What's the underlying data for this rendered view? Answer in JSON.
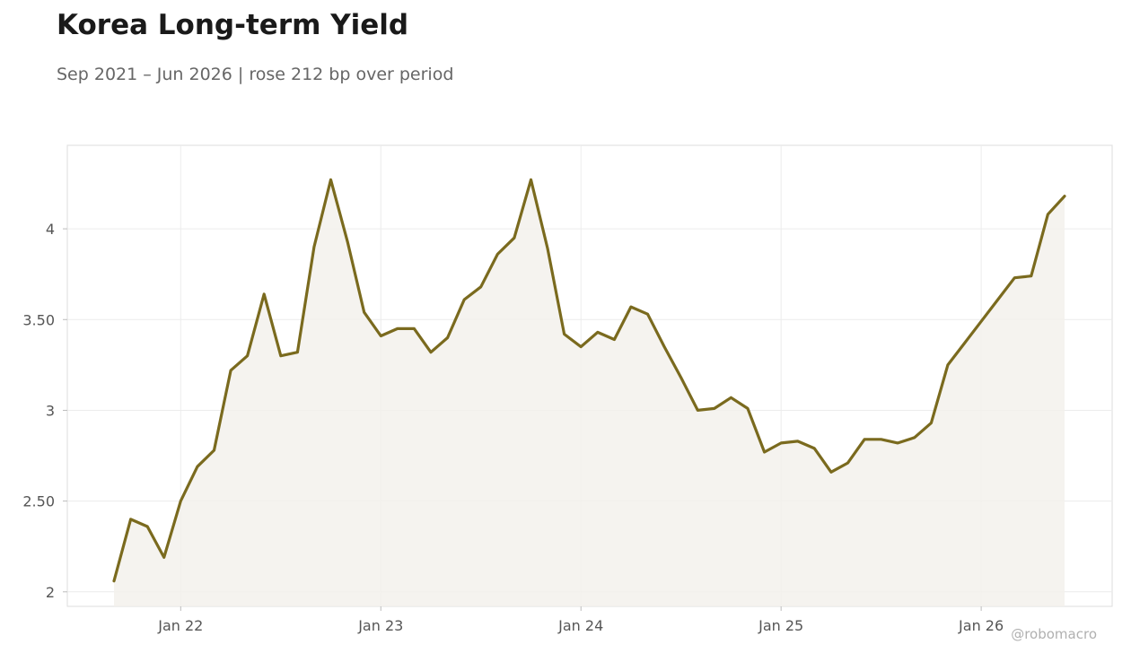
{
  "header": {
    "title": "Korea Long-term Yield",
    "subtitle": "Sep 2021 – Jun 2026 | rose 212 bp over period"
  },
  "watermark": "@robomacro",
  "colors": {
    "line": "#7a6a1e",
    "area": "#f3f1ec",
    "grid": "#ececec",
    "frame": "#dddddd"
  },
  "chart_data": {
    "type": "area",
    "title": "Korea Long-term Yield",
    "subtitle": "Sep 2021 – Jun 2026 | rose 212 bp over period",
    "xlabel": "",
    "ylabel": "",
    "x_start": "2021-09",
    "x_end": "2026-06",
    "x": [
      "2021-09",
      "2021-10",
      "2021-11",
      "2021-12",
      "2022-01",
      "2022-02",
      "2022-03",
      "2022-04",
      "2022-05",
      "2022-06",
      "2022-07",
      "2022-08",
      "2022-09",
      "2022-10",
      "2022-11",
      "2022-12",
      "2023-01",
      "2023-02",
      "2023-03",
      "2023-04",
      "2023-05",
      "2023-06",
      "2023-07",
      "2023-08",
      "2023-09",
      "2023-10",
      "2023-11",
      "2023-12",
      "2024-01",
      "2024-02",
      "2024-03",
      "2024-04",
      "2024-05",
      "2024-06",
      "2024-07",
      "2024-08",
      "2024-09",
      "2024-10",
      "2024-11",
      "2024-12",
      "2025-01",
      "2025-02",
      "2025-03",
      "2025-04",
      "2025-05",
      "2025-06",
      "2025-07",
      "2025-08",
      "2025-09",
      "2025-10",
      "2025-11",
      "2025-12",
      "2026-01",
      "2026-02",
      "2026-03",
      "2026-04",
      "2026-05",
      "2026-06"
    ],
    "series": [
      {
        "values": [
          2.06,
          2.4,
          2.36,
          2.19,
          2.5,
          2.69,
          2.78,
          3.22,
          3.3,
          3.64,
          3.3,
          3.32,
          3.9,
          4.27,
          3.93,
          3.54,
          3.41,
          3.45,
          3.45,
          3.32,
          3.4,
          3.61,
          3.68,
          3.86,
          3.95,
          4.27,
          3.89,
          3.42,
          3.35,
          3.43,
          3.39,
          3.57,
          3.53,
          3.35,
          3.18,
          3.0,
          3.01,
          3.07,
          3.01,
          2.77,
          2.82,
          2.83,
          2.79,
          2.66,
          2.71,
          2.84,
          2.84,
          2.82,
          2.85,
          2.93,
          3.25,
          3.37,
          3.49,
          3.61,
          3.73,
          3.74,
          4.08,
          4.18
        ]
      }
    ],
    "ylim": [
      1.92,
      4.46
    ],
    "yticks": [
      2,
      2.5,
      3,
      3.5,
      4
    ],
    "ytick_labels": [
      "2",
      "2.50",
      "3",
      "3.50",
      "4"
    ],
    "xticks": [
      "2022-01",
      "2023-01",
      "2024-01",
      "2025-01",
      "2026-01"
    ],
    "xtick_labels": [
      "Jan 22",
      "Jan 23",
      "Jan 24",
      "Jan 25",
      "Jan 26"
    ],
    "grid": true,
    "legend": "none"
  }
}
